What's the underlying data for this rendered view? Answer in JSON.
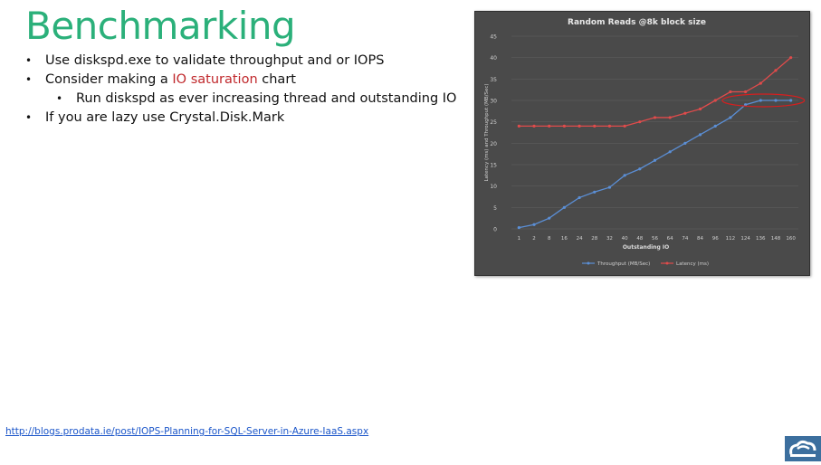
{
  "slide": {
    "title": "Benchmarking",
    "bullets": {
      "b1": "Use diskspd.exe to validate throughput and or IOPS",
      "b2_pre": "Consider making a ",
      "b2_hl": "IO saturation",
      "b2_post": " chart",
      "b3": "Run diskspd as ever increasing thread and outstanding IO",
      "b4": "If you are lazy use Crystal.Disk.Mark"
    },
    "link": "http://blogs.prodata.ie/post/IOPS-Planning-for-SQL-Server-in-Azure-IaaS.aspx"
  },
  "logo": {
    "icon": "cloud-logo-icon"
  },
  "colors": {
    "title": "#2bb07a",
    "highlight": "#c0282c",
    "chart_bg": "#4a4a4a",
    "throughput": "#5b8fd6",
    "latency": "#e04b4b",
    "annotation": "#d81e1e"
  },
  "chart_data": {
    "type": "line",
    "title": "Random Reads @8k block size",
    "xlabel": "Outstanding IO",
    "ylabel": "Latency (ms) and Throughput (MB/Sec)",
    "ylim": [
      0,
      45
    ],
    "yticks": [
      0,
      5,
      10,
      15,
      20,
      25,
      30,
      35,
      40,
      45
    ],
    "categories": [
      "1",
      "2",
      "8",
      "16",
      "24",
      "28",
      "32",
      "40",
      "48",
      "56",
      "64",
      "74",
      "84",
      "96",
      "112",
      "124",
      "136",
      "148",
      "160"
    ],
    "series": [
      {
        "name": "Throughput (MB/Sec)",
        "color": "#5b8fd6",
        "values": [
          0.3,
          1,
          2.5,
          5,
          7.3,
          8.6,
          9.7,
          12.5,
          14,
          16,
          18,
          20,
          22,
          24,
          26,
          29,
          30,
          30,
          30
        ]
      },
      {
        "name": "Latency (ms)",
        "color": "#e04b4b",
        "values": [
          24,
          24,
          24,
          24,
          24,
          24,
          24,
          24,
          25,
          26,
          26,
          27,
          28,
          30,
          32,
          32,
          34,
          37,
          40
        ]
      }
    ],
    "grid": true,
    "legend": "bottom"
  }
}
